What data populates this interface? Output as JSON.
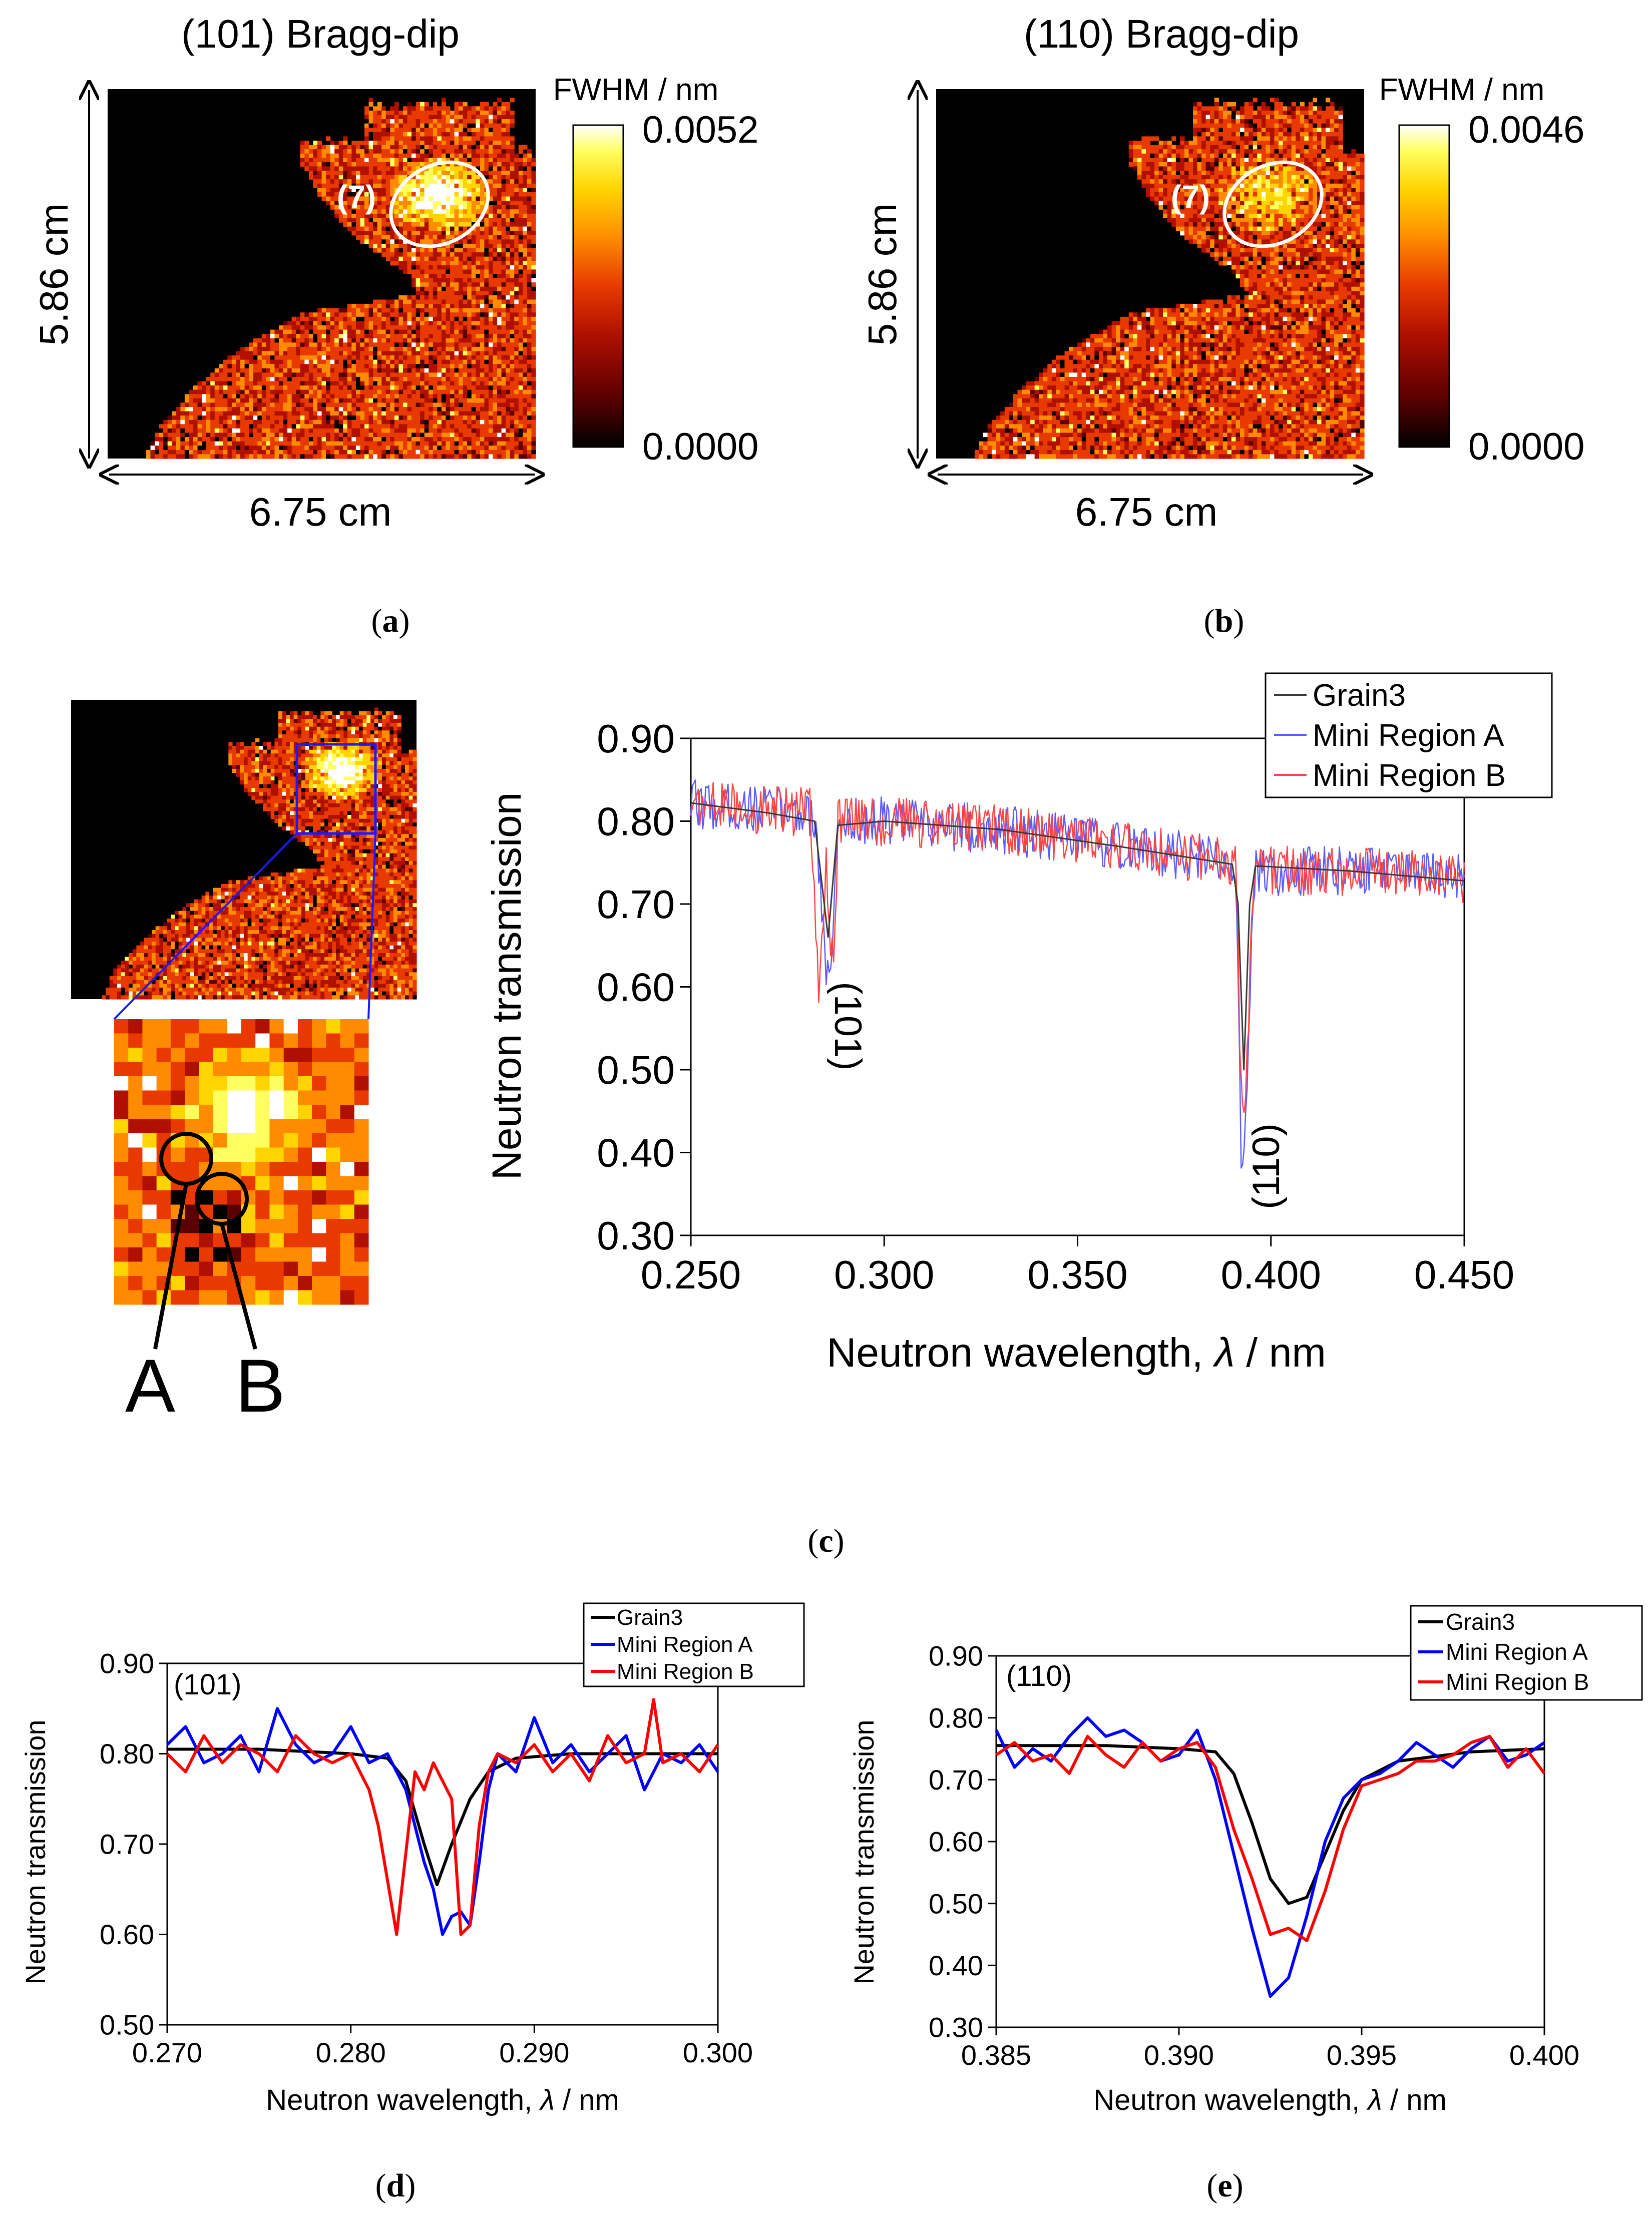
{
  "panel_labels": {
    "a": {
      "open": "(",
      "letter": "a",
      "close": ")"
    },
    "b": {
      "open": "(",
      "letter": "b",
      "close": ")"
    },
    "c": {
      "open": "(",
      "letter": "c",
      "close": ")"
    },
    "d": {
      "open": "(",
      "letter": "d",
      "close": ")"
    },
    "e": {
      "open": "(",
      "letter": "e",
      "close": ")"
    }
  },
  "colors": {
    "black": "#000000",
    "grain3": "#000000",
    "region_a": "#0000ff",
    "region_b": "#ff0000",
    "grain3_thin": "#3a3a3a",
    "region_a_thin": "#5b5bff",
    "region_b_thin": "#ff4545",
    "colormap": [
      "#000000",
      "#5a0000",
      "#b01000",
      "#e83a00",
      "#ff8c00",
      "#ffd400",
      "#ffff60",
      "#ffffff"
    ]
  },
  "maps": [
    {
      "id": "map_a",
      "title": "(101) Bragg-dip",
      "colorbar_title": "FWHM / nm",
      "colorbar_max": "0.0052",
      "colorbar_min": "0.0000",
      "height_label": "5.86 cm",
      "width_label": "6.75 cm",
      "region_label": "(7)",
      "seed": 11
    },
    {
      "id": "map_b",
      "title": "(110) Bragg-dip",
      "colorbar_title": "FWHM / nm",
      "colorbar_max": "0.0046",
      "colorbar_min": "0.0000",
      "height_label": "5.86 cm",
      "width_label": "6.75 cm",
      "region_label": "(7)",
      "seed": 23
    }
  ],
  "inset": {
    "label_a": "A",
    "label_b": "B"
  },
  "chart_data": [
    {
      "id": "c",
      "type": "line",
      "title": "",
      "xlabel_prefix": "Neutron wavelength, ",
      "xlabel_symbol": "λ",
      "xlabel_suffix": " / nm",
      "ylabel": "Neutron transmission",
      "xlim": [
        0.25,
        0.45
      ],
      "ylim": [
        0.3,
        0.9
      ],
      "xticks": [
        "0.250",
        "0.300",
        "0.350",
        "0.400",
        "0.450"
      ],
      "yticks": [
        "0.30",
        "0.40",
        "0.50",
        "0.60",
        "0.70",
        "0.80",
        "0.90"
      ],
      "annotations": [
        "(101)",
        "(110)"
      ],
      "legend": [
        "Grain3",
        "Mini Region A",
        "Mini Region B"
      ],
      "series": [
        {
          "name": "Grain3",
          "x": [
            0.25,
            0.27,
            0.282,
            0.2845,
            0.2855,
            0.288,
            0.3,
            0.33,
            0.36,
            0.39,
            0.3915,
            0.393,
            0.3945,
            0.396,
            0.42,
            0.45
          ],
          "y": [
            0.822,
            0.81,
            0.8,
            0.7,
            0.66,
            0.795,
            0.8,
            0.79,
            0.77,
            0.748,
            0.7,
            0.5,
            0.7,
            0.746,
            0.74,
            0.728
          ]
        },
        {
          "name": "Mini Region A",
          "x": [
            0.25,
            0.282,
            0.284,
            0.2855,
            0.2865,
            0.288,
            0.3,
            0.33,
            0.36,
            0.391,
            0.3925,
            0.393,
            0.3935,
            0.3955,
            0.42,
            0.45
          ],
          "y": [
            0.82,
            0.81,
            0.69,
            0.6,
            0.62,
            0.8,
            0.8,
            0.79,
            0.77,
            0.75,
            0.35,
            0.38,
            0.45,
            0.74,
            0.74,
            0.73
          ],
          "noise": 0.03
        },
        {
          "name": "Mini Region B",
          "x": [
            0.25,
            0.281,
            0.283,
            0.285,
            0.287,
            0.288,
            0.3,
            0.33,
            0.36,
            0.391,
            0.392,
            0.393,
            0.3935,
            0.3955,
            0.42,
            0.45
          ],
          "y": [
            0.82,
            0.81,
            0.6,
            0.75,
            0.6,
            0.8,
            0.8,
            0.79,
            0.77,
            0.75,
            0.52,
            0.45,
            0.46,
            0.74,
            0.74,
            0.73
          ],
          "noise": 0.03
        }
      ]
    },
    {
      "id": "d",
      "type": "line",
      "title": "",
      "xlabel_prefix": "Neutron wavelength, ",
      "xlabel_symbol": "λ",
      "xlabel_suffix": " / nm",
      "ylabel": "Neutron transmission",
      "xlim": [
        0.27,
        0.3
      ],
      "ylim": [
        0.5,
        0.9
      ],
      "xticks": [
        "0.270",
        "0.280",
        "0.290",
        "0.300"
      ],
      "yticks": [
        "0.50",
        "0.60",
        "0.70",
        "0.80",
        "0.90"
      ],
      "annotations": [
        "(101)"
      ],
      "legend": [
        "Grain3",
        "Mini Region A",
        "Mini Region B"
      ],
      "series": [
        {
          "name": "Grain3",
          "x": [
            0.27,
            0.275,
            0.28,
            0.282,
            0.283,
            0.284,
            0.2847,
            0.2855,
            0.2865,
            0.2875,
            0.289,
            0.292,
            0.3
          ],
          "y": [
            0.805,
            0.805,
            0.8,
            0.795,
            0.77,
            0.7,
            0.655,
            0.7,
            0.75,
            0.78,
            0.795,
            0.8,
            0.8
          ]
        },
        {
          "name": "Mini Region A",
          "x": [
            0.27,
            0.271,
            0.272,
            0.273,
            0.274,
            0.275,
            0.276,
            0.277,
            0.278,
            0.279,
            0.28,
            0.281,
            0.282,
            0.283,
            0.2835,
            0.284,
            0.2845,
            0.285,
            0.2855,
            0.286,
            0.2865,
            0.287,
            0.2875,
            0.288,
            0.289,
            0.29,
            0.291,
            0.292,
            0.293,
            0.294,
            0.295,
            0.296,
            0.297,
            0.298,
            0.299,
            0.3
          ],
          "y": [
            0.81,
            0.83,
            0.79,
            0.8,
            0.82,
            0.78,
            0.85,
            0.81,
            0.79,
            0.8,
            0.83,
            0.79,
            0.8,
            0.76,
            0.72,
            0.68,
            0.65,
            0.6,
            0.62,
            0.625,
            0.61,
            0.68,
            0.76,
            0.8,
            0.78,
            0.84,
            0.79,
            0.81,
            0.78,
            0.8,
            0.82,
            0.76,
            0.8,
            0.79,
            0.81,
            0.78
          ]
        },
        {
          "name": "Mini Region B",
          "x": [
            0.27,
            0.271,
            0.272,
            0.273,
            0.274,
            0.275,
            0.276,
            0.277,
            0.278,
            0.279,
            0.28,
            0.281,
            0.2815,
            0.282,
            0.2825,
            0.283,
            0.2835,
            0.284,
            0.2845,
            0.285,
            0.2855,
            0.286,
            0.2865,
            0.287,
            0.2875,
            0.288,
            0.289,
            0.29,
            0.291,
            0.292,
            0.293,
            0.294,
            0.295,
            0.296,
            0.2965,
            0.297,
            0.298,
            0.299,
            0.3
          ],
          "y": [
            0.8,
            0.78,
            0.82,
            0.79,
            0.81,
            0.8,
            0.78,
            0.82,
            0.8,
            0.79,
            0.8,
            0.76,
            0.72,
            0.66,
            0.6,
            0.69,
            0.78,
            0.76,
            0.79,
            0.77,
            0.75,
            0.6,
            0.61,
            0.72,
            0.78,
            0.8,
            0.79,
            0.81,
            0.78,
            0.8,
            0.77,
            0.82,
            0.79,
            0.8,
            0.86,
            0.79,
            0.8,
            0.78,
            0.81
          ]
        }
      ]
    },
    {
      "id": "e",
      "type": "line",
      "title": "",
      "xlabel_prefix": "Neutron wavelength, ",
      "xlabel_symbol": "λ",
      "xlabel_suffix": " / nm",
      "ylabel": "Neutron transmission",
      "xlim": [
        0.385,
        0.4
      ],
      "ylim": [
        0.3,
        0.9
      ],
      "xticks": [
        "0.385",
        "0.390",
        "0.395",
        "0.400"
      ],
      "yticks": [
        "0.30",
        "0.40",
        "0.50",
        "0.60",
        "0.70",
        "0.80",
        "0.90"
      ],
      "annotations": [
        "(110)"
      ],
      "legend": [
        "Grain3",
        "Mini Region A",
        "Mini Region B"
      ],
      "series": [
        {
          "name": "Grain3",
          "x": [
            0.385,
            0.388,
            0.39,
            0.391,
            0.3915,
            0.392,
            0.3925,
            0.393,
            0.3935,
            0.394,
            0.3945,
            0.395,
            0.396,
            0.398,
            0.4
          ],
          "y": [
            0.755,
            0.755,
            0.75,
            0.745,
            0.71,
            0.63,
            0.54,
            0.5,
            0.51,
            0.58,
            0.65,
            0.7,
            0.73,
            0.745,
            0.75
          ]
        },
        {
          "name": "Mini Region A",
          "x": [
            0.385,
            0.3855,
            0.386,
            0.3865,
            0.387,
            0.3875,
            0.388,
            0.3885,
            0.389,
            0.3895,
            0.39,
            0.3905,
            0.391,
            0.3915,
            0.392,
            0.3925,
            0.393,
            0.3935,
            0.394,
            0.3945,
            0.395,
            0.3955,
            0.396,
            0.3965,
            0.397,
            0.3975,
            0.398,
            0.3985,
            0.399,
            0.3995,
            0.4
          ],
          "y": [
            0.78,
            0.72,
            0.75,
            0.73,
            0.77,
            0.8,
            0.77,
            0.78,
            0.76,
            0.73,
            0.74,
            0.78,
            0.7,
            0.58,
            0.46,
            0.35,
            0.38,
            0.48,
            0.6,
            0.67,
            0.7,
            0.71,
            0.73,
            0.76,
            0.74,
            0.72,
            0.75,
            0.77,
            0.73,
            0.74,
            0.76
          ]
        },
        {
          "name": "Mini Region B",
          "x": [
            0.385,
            0.3855,
            0.386,
            0.3865,
            0.387,
            0.3875,
            0.388,
            0.3885,
            0.389,
            0.3895,
            0.39,
            0.3905,
            0.391,
            0.3915,
            0.392,
            0.3925,
            0.393,
            0.3935,
            0.394,
            0.3945,
            0.395,
            0.3955,
            0.396,
            0.3965,
            0.397,
            0.3975,
            0.398,
            0.3985,
            0.399,
            0.3995,
            0.4
          ],
          "y": [
            0.74,
            0.76,
            0.73,
            0.74,
            0.71,
            0.77,
            0.74,
            0.72,
            0.76,
            0.73,
            0.75,
            0.76,
            0.72,
            0.62,
            0.54,
            0.45,
            0.46,
            0.44,
            0.52,
            0.62,
            0.69,
            0.7,
            0.71,
            0.73,
            0.73,
            0.74,
            0.76,
            0.77,
            0.72,
            0.75,
            0.71
          ]
        }
      ]
    }
  ]
}
